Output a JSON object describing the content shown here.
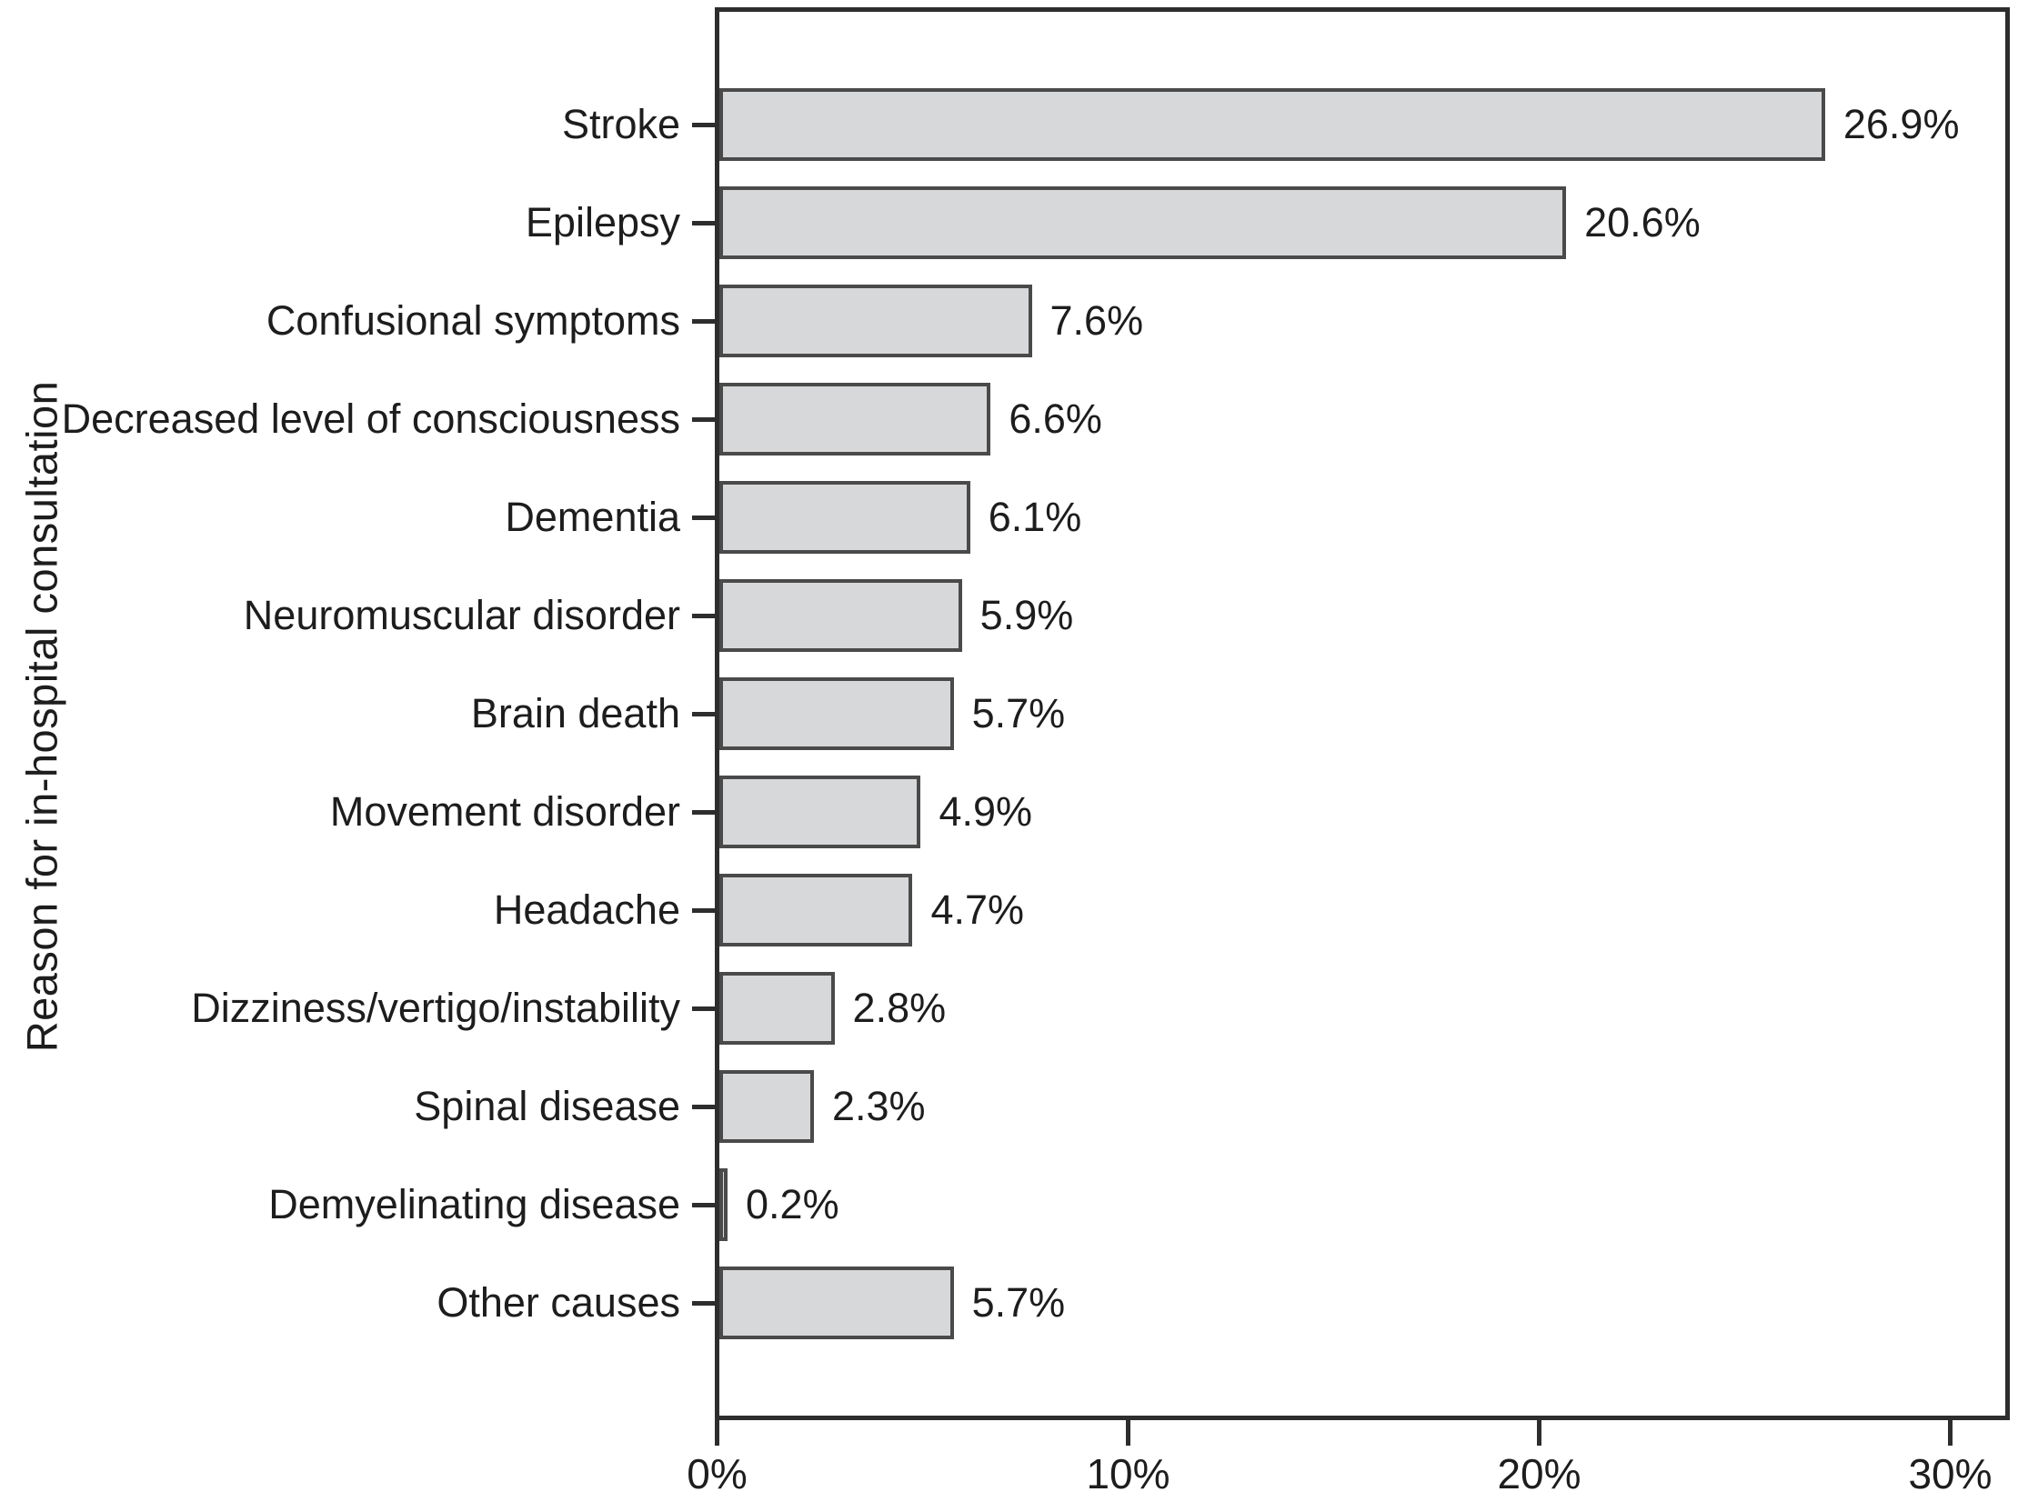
{
  "chart_data": {
    "type": "bar",
    "orientation": "horizontal",
    "title": "",
    "xlabel": "",
    "ylabel": "Reason for in-hospital consultation",
    "categories": [
      "Stroke",
      "Epilepsy",
      "Confusional symptoms",
      "Decreased level of consciousness",
      "Dementia",
      "Neuromuscular disorder",
      "Brain death",
      "Movement disorder",
      "Headache",
      "Dizziness/vertigo/instability",
      "Spinal disease",
      "Demyelinating disease",
      "Other causes"
    ],
    "values": [
      26.9,
      20.6,
      7.6,
      6.6,
      6.1,
      5.9,
      5.7,
      4.9,
      4.7,
      2.8,
      2.3,
      0.2,
      5.7
    ],
    "value_labels": [
      "26.9%",
      "20.6%",
      "7.6%",
      "6.6%",
      "6.1%",
      "5.9%",
      "5.7%",
      "4.9%",
      "4.7%",
      "2.8%",
      "2.3%",
      "0.2%",
      "5.7%"
    ],
    "x_ticks": [
      {
        "value": 0,
        "label": "0%"
      },
      {
        "value": 10,
        "label": "10%"
      },
      {
        "value": 20,
        "label": "20%"
      },
      {
        "value": 30,
        "label": "30%"
      }
    ],
    "xlim": [
      0,
      31.5
    ],
    "grid": false,
    "legend_position": "none",
    "colors": {
      "bar_fill": "#d7d8d9",
      "bar_border": "#4a4a4a",
      "axis": "#2d2d2d",
      "text": "#1d1d1d",
      "background": "#ffffff"
    }
  }
}
